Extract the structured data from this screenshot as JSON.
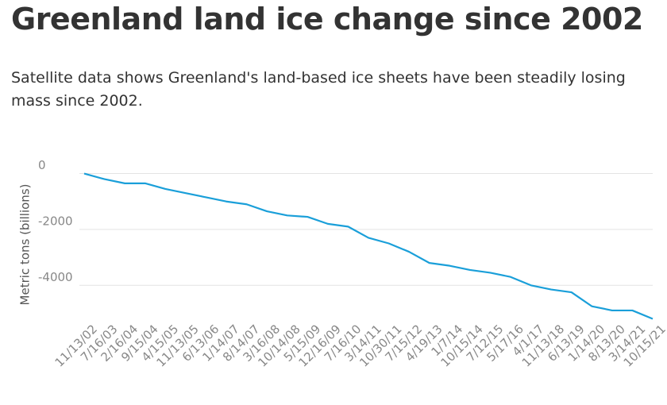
{
  "chart_data": {
    "type": "line",
    "title": "Greenland land ice change since 2002",
    "subtitle": "Satellite data shows Greenland's land-based ice sheets have been steadily losing mass since 2002.",
    "y_label": "Metric tons (billions)",
    "categories": [
      "11/13/02",
      "7/16/03",
      "2/16/04",
      "9/15/04",
      "4/15/05",
      "11/13/05",
      "6/13/06",
      "1/14/07",
      "8/14/07",
      "3/16/08",
      "10/14/08",
      "5/15/09",
      "12/16/09",
      "7/16/10",
      "3/14/11",
      "10/30/11",
      "7/15/12",
      "4/19/13",
      "1/7/14",
      "10/15/14",
      "7/12/15",
      "5/17/16",
      "4/1/17",
      "11/13/18",
      "6/13/19",
      "1/14/20",
      "8/13/20",
      "3/14/21",
      "10/15/21"
    ],
    "series": [
      {
        "name": "Greenland land ice change",
        "color": "#1a9fd9",
        "values": [
          0,
          -200,
          -350,
          -350,
          -550,
          -700,
          -850,
          -1000,
          -1100,
          -1350,
          -1500,
          -1550,
          -1800,
          -1900,
          -2300,
          -2500,
          -2800,
          -3200,
          -3300,
          -3450,
          -3550,
          -3700,
          -4000,
          -4150,
          -4250,
          -4750,
          -4900,
          -4900,
          -5200
        ]
      }
    ],
    "ylim": [
      -5300,
      300
    ],
    "yticks": [
      0,
      -2000,
      -4000
    ],
    "grid": true
  }
}
